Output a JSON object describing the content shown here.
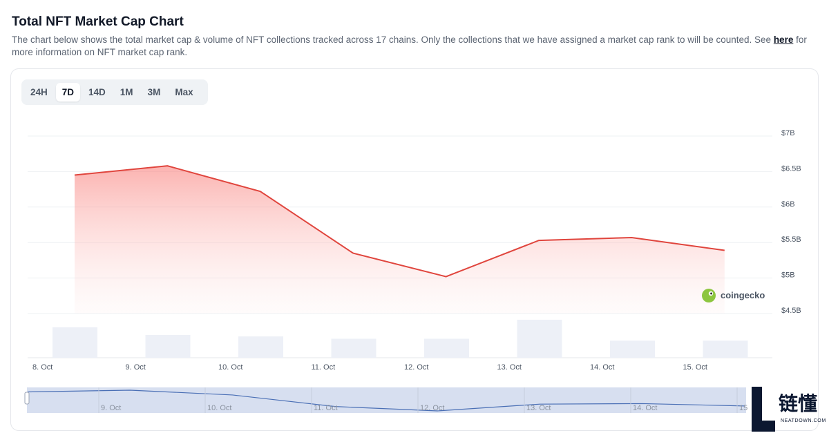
{
  "header": {
    "title": "Total NFT Market Cap Chart",
    "description_prefix": "The chart below shows the total market cap & volume of NFT collections tracked across 17 chains. Only the collections that we have assigned a market cap rank to will be counted. See ",
    "link_text": "here",
    "description_suffix": " for more information on NFT market cap rank."
  },
  "range_tabs": [
    {
      "label": "24H",
      "active": false
    },
    {
      "label": "7D",
      "active": true
    },
    {
      "label": "14D",
      "active": false
    },
    {
      "label": "1M",
      "active": false
    },
    {
      "label": "3M",
      "active": false
    },
    {
      "label": "Max",
      "active": false
    }
  ],
  "branding": {
    "chart_logo_text": "coingecko",
    "watermark_cn": "链懂",
    "watermark_en": "NEATDOWN.COM"
  },
  "colors": {
    "market_cap_line": "#e0453d",
    "volume_bar": "#edf0f7",
    "navigator_fill": "#d7dff0",
    "navigator_line": "#4a6fb5"
  },
  "chart_data": {
    "type": "line",
    "title": "",
    "xlabel": "",
    "ylabel": "",
    "ylim": [
      4.5,
      7
    ],
    "y_ticks": [
      "$4.5B",
      "$5B",
      "$5.5B",
      "$6B",
      "$6.5B",
      "$7B"
    ],
    "x_ticks": [
      "8. Oct",
      "9. Oct",
      "10. Oct",
      "11. Oct",
      "12. Oct",
      "13. Oct",
      "14. Oct",
      "15. Oct"
    ],
    "series": [
      {
        "kind": "line",
        "unit": "USD billions",
        "x": [
          "8. Oct",
          "9. Oct",
          "10. Oct",
          "11. Oct",
          "12. Oct",
          "13. Oct",
          "14. Oct",
          "15. Oct"
        ],
        "values": [
          6.45,
          6.58,
          6.22,
          5.35,
          5.02,
          5.53,
          5.57,
          5.39
        ]
      },
      {
        "kind": "bar",
        "x": [
          "8. Oct",
          "9. Oct",
          "10. Oct",
          "11. Oct",
          "12. Oct",
          "13. Oct",
          "14. Oct",
          "15. Oct"
        ],
        "values": [
          0.8,
          0.6,
          0.56,
          0.5,
          0.5,
          1.0,
          0.45,
          0.45
        ]
      }
    ],
    "navigator_x_ticks": [
      "9. Oct",
      "10. Oct",
      "11. Oct",
      "12. Oct",
      "13. Oct",
      "14. Oct",
      "15"
    ],
    "grid": true,
    "legend": "none"
  }
}
